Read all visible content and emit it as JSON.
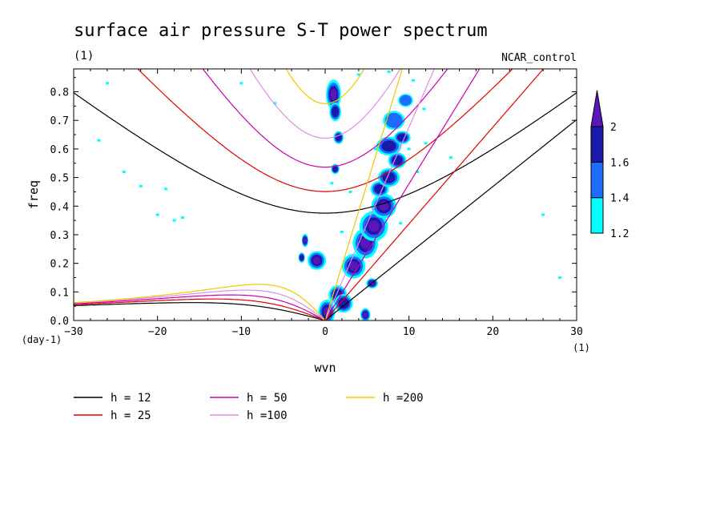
{
  "chart_data": {
    "type": "heatmap",
    "title": "surface air pressure S-T power spectrum",
    "subtitle": "(1)",
    "run_label": "NCAR_control",
    "xlabel": "wvn",
    "ylabel": "freq",
    "x_unit": "(1)",
    "y_unit": "(day-1)",
    "xlim": [
      -30,
      30
    ],
    "ylim": [
      0,
      0.88
    ],
    "x_ticks": [
      -30,
      -20,
      -10,
      0,
      10,
      20,
      30
    ],
    "y_ticks": [
      0.0,
      0.1,
      0.2,
      0.3,
      0.4,
      0.5,
      0.6,
      0.7,
      0.8
    ],
    "colorbar": {
      "levels": [
        "1.2",
        "1.4",
        "1.6",
        "2"
      ],
      "colors": [
        "#00ffff",
        "#1e6bff",
        "#1a1aa8",
        "#5a16b8"
      ]
    },
    "dispersion_curves": [
      {
        "label": "h = 12",
        "h": 12,
        "color": "#000000"
      },
      {
        "label": "h = 25",
        "h": 25,
        "color": "#e00000"
      },
      {
        "label": "h = 50",
        "h": 50,
        "color": "#c800b4"
      },
      {
        "label": "h =100",
        "h": 100,
        "color": "#e08ce6"
      },
      {
        "label": "h =200",
        "h": 200,
        "color": "#f0c800"
      }
    ],
    "contour_blobs": [
      {
        "x": 1.0,
        "y": 0.79,
        "rx": 0.8,
        "ry": 0.05,
        "level": 3
      },
      {
        "x": 1.2,
        "y": 0.73,
        "rx": 0.6,
        "ry": 0.03,
        "level": 2
      },
      {
        "x": -1.0,
        "y": 0.21,
        "rx": 1.0,
        "ry": 0.03,
        "level": 3
      },
      {
        "x": 0.2,
        "y": 0.03,
        "rx": 0.9,
        "ry": 0.04,
        "level": 3
      },
      {
        "x": 1.5,
        "y": 0.09,
        "rx": 1.0,
        "ry": 0.03,
        "level": 2
      },
      {
        "x": 2.2,
        "y": 0.06,
        "rx": 1.0,
        "ry": 0.03,
        "level": 2
      },
      {
        "x": 3.4,
        "y": 0.19,
        "rx": 1.3,
        "ry": 0.04,
        "level": 3
      },
      {
        "x": 4.8,
        "y": 0.27,
        "rx": 1.4,
        "ry": 0.05,
        "level": 3
      },
      {
        "x": 5.8,
        "y": 0.33,
        "rx": 1.6,
        "ry": 0.05,
        "level": 3
      },
      {
        "x": 7.0,
        "y": 0.4,
        "rx": 1.4,
        "ry": 0.04,
        "level": 3
      },
      {
        "x": 6.5,
        "y": 0.46,
        "rx": 1.0,
        "ry": 0.025,
        "level": 2
      },
      {
        "x": 7.6,
        "y": 0.5,
        "rx": 1.2,
        "ry": 0.03,
        "level": 2
      },
      {
        "x": 8.6,
        "y": 0.56,
        "rx": 1.0,
        "ry": 0.025,
        "level": 2
      },
      {
        "x": 7.6,
        "y": 0.61,
        "rx": 1.4,
        "ry": 0.03,
        "level": 2
      },
      {
        "x": 9.2,
        "y": 0.64,
        "rx": 0.9,
        "ry": 0.02,
        "level": 2
      },
      {
        "x": 8.2,
        "y": 0.7,
        "rx": 1.2,
        "ry": 0.03,
        "level": 1
      },
      {
        "x": 9.6,
        "y": 0.77,
        "rx": 0.8,
        "ry": 0.02,
        "level": 1
      },
      {
        "x": 5.6,
        "y": 0.13,
        "rx": 0.6,
        "ry": 0.015,
        "level": 3
      },
      {
        "x": -2.4,
        "y": 0.28,
        "rx": 0.3,
        "ry": 0.02,
        "level": 3
      },
      {
        "x": -2.8,
        "y": 0.22,
        "rx": 0.3,
        "ry": 0.015,
        "level": 2
      },
      {
        "x": 4.8,
        "y": 0.02,
        "rx": 0.5,
        "ry": 0.02,
        "level": 3
      },
      {
        "x": 1.6,
        "y": 0.64,
        "rx": 0.5,
        "ry": 0.02,
        "level": 2
      },
      {
        "x": 1.2,
        "y": 0.53,
        "rx": 0.4,
        "ry": 0.015,
        "level": 2
      }
    ],
    "cyan_speckles": [
      [
        -27,
        0.63
      ],
      [
        -24,
        0.52
      ],
      [
        -22,
        0.47
      ],
      [
        -19,
        0.46
      ],
      [
        -20,
        0.37
      ],
      [
        -18,
        0.35
      ],
      [
        -17,
        0.36
      ],
      [
        -6,
        0.76
      ],
      [
        -10,
        0.83
      ],
      [
        -26,
        0.83
      ],
      [
        4,
        0.86
      ],
      [
        6,
        0.6
      ],
      [
        10,
        0.6
      ],
      [
        11,
        0.52
      ],
      [
        12,
        0.62
      ],
      [
        9,
        0.34
      ],
      [
        15,
        0.57
      ],
      [
        26,
        0.37
      ],
      [
        28,
        0.15
      ],
      [
        3,
        0.45
      ],
      [
        2,
        0.31
      ],
      [
        0.8,
        0.48
      ],
      [
        10.5,
        0.84
      ],
      [
        11.8,
        0.74
      ],
      [
        7.6,
        0.87
      ]
    ]
  }
}
